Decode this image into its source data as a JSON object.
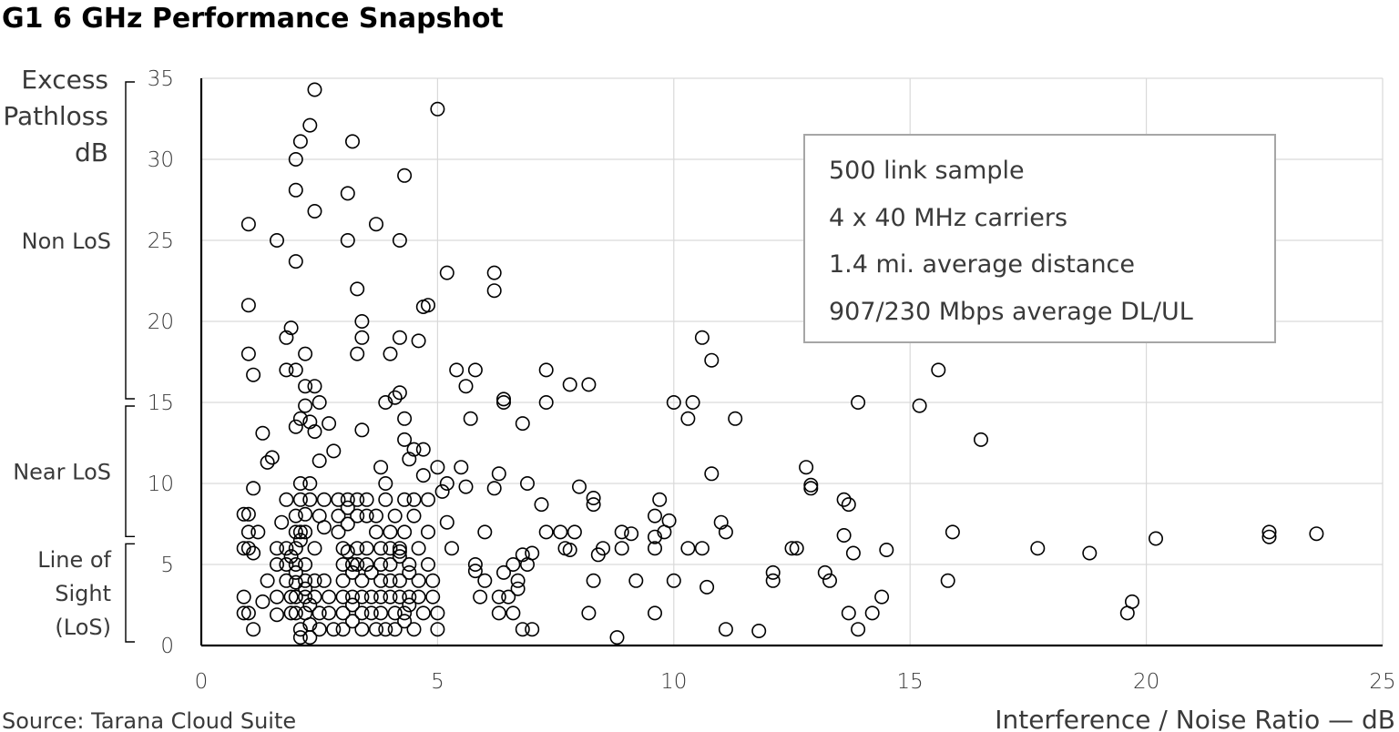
{
  "title": "G1 6 GHz Performance Snapshot",
  "source": "Source:  Tarana Cloud Suite",
  "annotation": [
    "500 link sample",
    "4 x 40 MHz carriers",
    "1.4 mi. average distance",
    "907/230 Mbps  average DL/UL"
  ],
  "chart_data": {
    "type": "scatter",
    "title": "G1 6 GHz Performance Snapshot",
    "xlabel": "Interference / Noise Ratio — dB",
    "ylabel": [
      "Excess",
      "Pathloss",
      "dB"
    ],
    "xlim": [
      0,
      25
    ],
    "ylim": [
      0,
      35
    ],
    "xticks": [
      "0",
      "5",
      "10",
      "15",
      "20",
      "25"
    ],
    "yticks": [
      "0",
      "5",
      "10",
      "15",
      "20",
      "25",
      "30",
      "35"
    ],
    "grid": true,
    "marker": "open-circle",
    "regions": [
      {
        "label": [
          "Non LoS"
        ],
        "from": 15,
        "to": 35
      },
      {
        "label": [
          "Near LoS"
        ],
        "from": 6.5,
        "to": 15
      },
      {
        "label": [
          "Line of",
          "Sight",
          "(LoS)"
        ],
        "from": 0,
        "to": 6.5
      }
    ],
    "points": [
      [
        0.9,
        8.1
      ],
      [
        1.0,
        8.1
      ],
      [
        0.9,
        6.0
      ],
      [
        1.0,
        7.0
      ],
      [
        1.0,
        6.0
      ],
      [
        0.9,
        3.0
      ],
      [
        1.0,
        2.0
      ],
      [
        0.9,
        2.0
      ],
      [
        1.1,
        1.0
      ],
      [
        1.1,
        5.7
      ],
      [
        1.2,
        7.0
      ],
      [
        1.1,
        9.7
      ],
      [
        1.3,
        13.1
      ],
      [
        1.4,
        11.3
      ],
      [
        1.5,
        11.6
      ],
      [
        1.4,
        4.0
      ],
      [
        1.3,
        2.7
      ],
      [
        1.6,
        6.0
      ],
      [
        1.6,
        3.0
      ],
      [
        1.6,
        5.0
      ],
      [
        1.6,
        1.9
      ],
      [
        1.7,
        7.6
      ],
      [
        1.8,
        6.0
      ],
      [
        1.8,
        5.0
      ],
      [
        1.8,
        4.0
      ],
      [
        1.9,
        3.0
      ],
      [
        1.9,
        2.0
      ],
      [
        1.8,
        9.0
      ],
      [
        1.9,
        5.5
      ],
      [
        2.0,
        4.5
      ],
      [
        2.0,
        8.0
      ],
      [
        2.0,
        7.0
      ],
      [
        2.0,
        6.0
      ],
      [
        2.0,
        5.0
      ],
      [
        2.0,
        3.9
      ],
      [
        2.0,
        3.0
      ],
      [
        2.0,
        2.0
      ],
      [
        2.1,
        1.0
      ],
      [
        2.1,
        0.5
      ],
      [
        2.1,
        10.0
      ],
      [
        2.1,
        9.0
      ],
      [
        2.1,
        7.0
      ],
      [
        2.1,
        6.5
      ],
      [
        2.2,
        4.0
      ],
      [
        2.2,
        3.0
      ],
      [
        2.2,
        2.0
      ],
      [
        2.2,
        8.1
      ],
      [
        2.2,
        7.0
      ],
      [
        2.2,
        5.0
      ],
      [
        2.2,
        3.5
      ],
      [
        2.3,
        2.5
      ],
      [
        2.3,
        1.3
      ],
      [
        2.3,
        0.5
      ],
      [
        2.3,
        10.0
      ],
      [
        2.3,
        9.0
      ],
      [
        2.4,
        6.0
      ],
      [
        2.4,
        4.0
      ],
      [
        2.4,
        3.0
      ],
      [
        2.5,
        2.0
      ],
      [
        2.5,
        1.0
      ],
      [
        2.5,
        8.0
      ],
      [
        2.6,
        9.0
      ],
      [
        2.6,
        7.3
      ],
      [
        2.6,
        4.0
      ],
      [
        2.7,
        3.0
      ],
      [
        2.7,
        2.0
      ],
      [
        2.8,
        1.0
      ],
      [
        2.8,
        12.0
      ],
      [
        2.9,
        9.0
      ],
      [
        2.9,
        8.0
      ],
      [
        2.9,
        7.0
      ],
      [
        3.0,
        6.0
      ],
      [
        3.0,
        5.0
      ],
      [
        3.0,
        4.0
      ],
      [
        3.0,
        3.0
      ],
      [
        3.0,
        2.0
      ],
      [
        3.0,
        1.0
      ],
      [
        3.1,
        9.0
      ],
      [
        3.1,
        8.5
      ],
      [
        3.1,
        7.5
      ],
      [
        3.1,
        5.8
      ],
      [
        3.2,
        5.0
      ],
      [
        3.2,
        4.5
      ],
      [
        3.2,
        3.0
      ],
      [
        3.2,
        2.5
      ],
      [
        3.2,
        1.5
      ],
      [
        3.3,
        9.0
      ],
      [
        3.3,
        8.0
      ],
      [
        3.3,
        6.0
      ],
      [
        3.3,
        5.0
      ],
      [
        3.4,
        4.0
      ],
      [
        3.4,
        3.0
      ],
      [
        3.4,
        2.0
      ],
      [
        3.4,
        1.0
      ],
      [
        3.5,
        9.0
      ],
      [
        3.5,
        8.0
      ],
      [
        3.5,
        6.0
      ],
      [
        3.5,
        5.0
      ],
      [
        3.6,
        4.5
      ],
      [
        3.6,
        3.0
      ],
      [
        3.6,
        2.0
      ],
      [
        3.7,
        1.0
      ],
      [
        3.7,
        8.0
      ],
      [
        3.7,
        7.0
      ],
      [
        3.8,
        6.0
      ],
      [
        3.8,
        5.0
      ],
      [
        3.8,
        4.0
      ],
      [
        3.8,
        3.0
      ],
      [
        3.8,
        2.0
      ],
      [
        3.9,
        1.0
      ],
      [
        3.9,
        10.0
      ],
      [
        3.9,
        9.0
      ],
      [
        4.0,
        7.0
      ],
      [
        4.0,
        6.0
      ],
      [
        4.0,
        5.0
      ],
      [
        4.0,
        4.0
      ],
      [
        4.0,
        3.0
      ],
      [
        4.1,
        2.0
      ],
      [
        4.1,
        1.0
      ],
      [
        4.1,
        8.0
      ],
      [
        4.2,
        6.0
      ],
      [
        4.2,
        5.8
      ],
      [
        4.2,
        5.5
      ],
      [
        4.2,
        4.0
      ],
      [
        4.2,
        3.0
      ],
      [
        4.3,
        2.0
      ],
      [
        4.3,
        1.5
      ],
      [
        4.3,
        9.0
      ],
      [
        4.3,
        7.0
      ],
      [
        4.4,
        5.0
      ],
      [
        4.4,
        4.5
      ],
      [
        4.4,
        3.0
      ],
      [
        4.4,
        2.5
      ],
      [
        4.5,
        1.0
      ],
      [
        4.5,
        9.0
      ],
      [
        4.5,
        8.0
      ],
      [
        4.6,
        6.0
      ],
      [
        4.6,
        4.0
      ],
      [
        4.6,
        3.0
      ],
      [
        4.7,
        2.0
      ],
      [
        4.7,
        10.5
      ],
      [
        4.8,
        9.0
      ],
      [
        4.8,
        7.0
      ],
      [
        4.8,
        5.0
      ],
      [
        4.9,
        4.0
      ],
      [
        4.9,
        3.0
      ],
      [
        5.0,
        2.0
      ],
      [
        5.0,
        1.0
      ],
      [
        5.0,
        11.0
      ],
      [
        5.1,
        9.5
      ],
      [
        1.0,
        21.0
      ],
      [
        1.0,
        26.0
      ],
      [
        1.1,
        16.7
      ],
      [
        1.0,
        18.0
      ],
      [
        1.6,
        25.0
      ],
      [
        1.8,
        19.0
      ],
      [
        1.8,
        17.0
      ],
      [
        1.9,
        19.6
      ],
      [
        2.0,
        23.7
      ],
      [
        2.0,
        17.0
      ],
      [
        2.0,
        28.1
      ],
      [
        2.0,
        30.0
      ],
      [
        2.1,
        31.1
      ],
      [
        2.2,
        18.0
      ],
      [
        2.2,
        16.0
      ],
      [
        2.3,
        32.1
      ],
      [
        2.4,
        26.8
      ],
      [
        2.4,
        16.0
      ],
      [
        2.4,
        34.3
      ],
      [
        2.5,
        15.0
      ],
      [
        2.0,
        13.5
      ],
      [
        2.1,
        14.0
      ],
      [
        2.2,
        14.8
      ],
      [
        2.3,
        13.8
      ],
      [
        2.4,
        13.2
      ],
      [
        2.5,
        11.4
      ],
      [
        2.7,
        13.7
      ],
      [
        3.1,
        27.9
      ],
      [
        3.1,
        25.0
      ],
      [
        3.2,
        31.1
      ],
      [
        3.3,
        22.0
      ],
      [
        3.3,
        18.0
      ],
      [
        3.4,
        20.0
      ],
      [
        3.4,
        19.0
      ],
      [
        3.4,
        13.3
      ],
      [
        3.7,
        26.0
      ],
      [
        3.8,
        11.0
      ],
      [
        3.9,
        15.0
      ],
      [
        4.0,
        18.0
      ],
      [
        4.1,
        15.3
      ],
      [
        4.2,
        25.0
      ],
      [
        4.2,
        19.0
      ],
      [
        4.2,
        15.6
      ],
      [
        4.3,
        29.0
      ],
      [
        4.3,
        14.0
      ],
      [
        4.3,
        12.7
      ],
      [
        4.4,
        11.5
      ],
      [
        4.5,
        12.1
      ],
      [
        4.6,
        18.8
      ],
      [
        4.7,
        12.1
      ],
      [
        4.7,
        20.9
      ],
      [
        4.8,
        21.0
      ],
      [
        5.0,
        33.1
      ],
      [
        5.2,
        23.0
      ],
      [
        5.2,
        10.0
      ],
      [
        5.2,
        7.6
      ],
      [
        5.3,
        6.0
      ],
      [
        5.4,
        17.0
      ],
      [
        5.5,
        11.0
      ],
      [
        5.6,
        16.0
      ],
      [
        5.6,
        9.8
      ],
      [
        5.7,
        14.0
      ],
      [
        5.8,
        17.0
      ],
      [
        5.8,
        5.0
      ],
      [
        5.8,
        4.6
      ],
      [
        5.9,
        3.0
      ],
      [
        6.0,
        7.0
      ],
      [
        6.0,
        4.0
      ],
      [
        6.2,
        23.0
      ],
      [
        6.2,
        21.9
      ],
      [
        6.2,
        9.7
      ],
      [
        6.3,
        10.6
      ],
      [
        6.3,
        3.0
      ],
      [
        6.3,
        2.0
      ],
      [
        6.4,
        15.2
      ],
      [
        6.4,
        15.0
      ],
      [
        6.4,
        4.5
      ],
      [
        6.5,
        3.0
      ],
      [
        6.6,
        5.0
      ],
      [
        6.6,
        2.0
      ],
      [
        6.7,
        4.0
      ],
      [
        6.7,
        3.5
      ],
      [
        6.8,
        13.7
      ],
      [
        6.8,
        5.6
      ],
      [
        6.8,
        1.0
      ],
      [
        6.9,
        10.0
      ],
      [
        6.9,
        5.0
      ],
      [
        7.0,
        5.7
      ],
      [
        7.0,
        1.0
      ],
      [
        7.2,
        8.7
      ],
      [
        7.3,
        17.0
      ],
      [
        7.3,
        15.0
      ],
      [
        7.3,
        7.0
      ],
      [
        7.6,
        7.0
      ],
      [
        7.7,
        6.0
      ],
      [
        7.8,
        16.1
      ],
      [
        7.8,
        5.9
      ],
      [
        7.9,
        7.0
      ],
      [
        8.0,
        9.8
      ],
      [
        8.2,
        16.1
      ],
      [
        8.2,
        2.0
      ],
      [
        8.3,
        9.1
      ],
      [
        8.3,
        8.7
      ],
      [
        8.3,
        4.0
      ],
      [
        8.4,
        5.6
      ],
      [
        8.5,
        6.0
      ],
      [
        8.8,
        0.5
      ],
      [
        8.9,
        7.0
      ],
      [
        8.9,
        6.0
      ],
      [
        9.1,
        6.9
      ],
      [
        9.2,
        4.0
      ],
      [
        9.6,
        8.0
      ],
      [
        9.6,
        6.7
      ],
      [
        9.6,
        6.0
      ],
      [
        9.6,
        2.0
      ],
      [
        9.7,
        9.0
      ],
      [
        9.8,
        7.0
      ],
      [
        9.9,
        7.7
      ],
      [
        10.0,
        15.0
      ],
      [
        10.0,
        4.0
      ],
      [
        10.3,
        14.0
      ],
      [
        10.3,
        6.0
      ],
      [
        10.4,
        15.0
      ],
      [
        10.6,
        19.0
      ],
      [
        10.6,
        6.0
      ],
      [
        10.7,
        3.6
      ],
      [
        10.8,
        10.6
      ],
      [
        10.8,
        17.6
      ],
      [
        11.0,
        7.6
      ],
      [
        11.1,
        7.0
      ],
      [
        11.1,
        1.0
      ],
      [
        11.3,
        14.0
      ],
      [
        11.8,
        0.9
      ],
      [
        12.1,
        4.5
      ],
      [
        12.1,
        4.0
      ],
      [
        12.5,
        6.0
      ],
      [
        12.6,
        6.0
      ],
      [
        12.8,
        11.0
      ],
      [
        12.9,
        9.9
      ],
      [
        12.9,
        9.7
      ],
      [
        13.2,
        4.5
      ],
      [
        13.3,
        4.0
      ],
      [
        13.6,
        9.0
      ],
      [
        13.6,
        6.8
      ],
      [
        13.7,
        8.7
      ],
      [
        13.7,
        2.0
      ],
      [
        13.8,
        5.7
      ],
      [
        13.9,
        15.0
      ],
      [
        13.9,
        1.0
      ],
      [
        14.2,
        2.0
      ],
      [
        14.4,
        3.0
      ],
      [
        14.5,
        5.9
      ],
      [
        15.2,
        14.8
      ],
      [
        15.6,
        17.0
      ],
      [
        15.8,
        4.0
      ],
      [
        15.9,
        7.0
      ],
      [
        16.5,
        12.7
      ],
      [
        17.7,
        6.0
      ],
      [
        18.8,
        5.7
      ],
      [
        19.6,
        2.0
      ],
      [
        19.7,
        2.7
      ],
      [
        20.2,
        6.6
      ],
      [
        22.6,
        7.0
      ],
      [
        22.6,
        6.7
      ],
      [
        23.6,
        6.9
      ]
    ]
  }
}
